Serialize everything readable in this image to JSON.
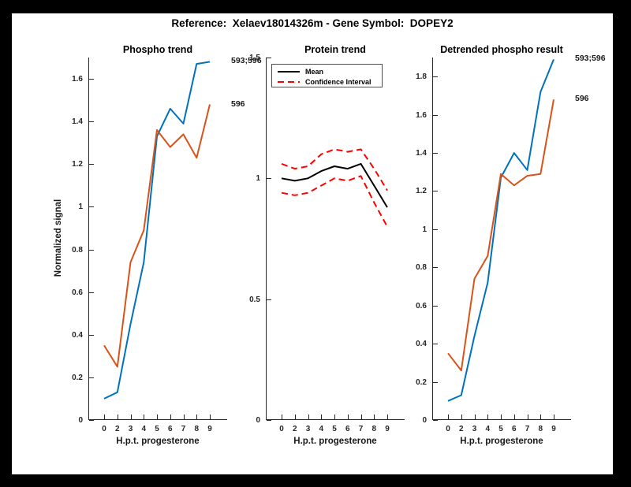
{
  "figure": {
    "title": "Reference:  Xelaev18014326m - Gene Symbol:  DOPEY2",
    "background_color": "#000000",
    "canvas_color": "#ffffff"
  },
  "colors": {
    "blue": "#0072BD",
    "orange": "#D95319",
    "red": "#FF0000",
    "black": "#000000",
    "axis": "#262626"
  },
  "chart_data": [
    {
      "type": "line",
      "title": "Phospho trend",
      "xlabel": "H.p.t. progesterone",
      "ylabel": "Normalized signal",
      "x_ticklabels": [
        "0",
        "2",
        "3",
        "4",
        "5",
        "6",
        "7",
        "8",
        "9"
      ],
      "ylim": [
        0,
        1.7
      ],
      "yticks": [
        0,
        0.2,
        0.4,
        0.6,
        0.8,
        1,
        1.2,
        1.4,
        1.6
      ],
      "ytick_labels": [
        "0",
        "0.2",
        "0.4",
        "0.6",
        "0.8",
        "1",
        "1.2",
        "1.4",
        "1.6"
      ],
      "grid": false,
      "series": [
        {
          "name": "593;596",
          "color": "blue",
          "style": "solid",
          "values": [
            0.1,
            0.13,
            0.45,
            0.74,
            1.33,
            1.46,
            1.39,
            1.67,
            1.68
          ],
          "end_label": "593;596"
        },
        {
          "name": "596",
          "color": "orange",
          "style": "solid",
          "values": [
            0.35,
            0.25,
            0.74,
            0.89,
            1.36,
            1.28,
            1.34,
            1.23,
            1.48
          ],
          "end_label": "596"
        }
      ]
    },
    {
      "type": "line",
      "title": "Protein trend",
      "xlabel": "H.p.t. progesterone",
      "ylabel": "",
      "x_ticklabels": [
        "0",
        "2",
        "3",
        "4",
        "5",
        "6",
        "7",
        "8",
        "9"
      ],
      "ylim": [
        0,
        1.5
      ],
      "yticks": [
        0,
        0.5,
        1,
        1.5
      ],
      "ytick_labels": [
        "0",
        "0.5",
        "1",
        "1.5"
      ],
      "grid": false,
      "legend": {
        "position": "northwest",
        "items": [
          {
            "label": "Mean",
            "color": "black",
            "style": "solid"
          },
          {
            "label": "Confidence Interval",
            "color": "red",
            "style": "dashed"
          }
        ]
      },
      "series": [
        {
          "name": "Mean",
          "color": "black",
          "style": "solid",
          "values": [
            1.0,
            0.99,
            1.0,
            1.03,
            1.05,
            1.04,
            1.06,
            0.97,
            0.88
          ],
          "end_label": null
        },
        {
          "name": "Confidence Interval upper",
          "color": "red",
          "style": "dashed",
          "values": [
            1.06,
            1.04,
            1.05,
            1.1,
            1.12,
            1.11,
            1.12,
            1.04,
            0.95
          ],
          "end_label": null
        },
        {
          "name": "Confidence Interval lower",
          "color": "red",
          "style": "dashed",
          "values": [
            0.94,
            0.93,
            0.94,
            0.97,
            1.0,
            0.99,
            1.01,
            0.9,
            0.8
          ],
          "end_label": null
        }
      ]
    },
    {
      "type": "line",
      "title": "Detrended phospho result",
      "xlabel": "H.p.t. progesterone",
      "ylabel": "",
      "x_ticklabels": [
        "0",
        "2",
        "3",
        "4",
        "5",
        "6",
        "7",
        "8",
        "9"
      ],
      "ylim": [
        0,
        1.9
      ],
      "yticks": [
        0,
        0.2,
        0.4,
        0.6,
        0.8,
        1,
        1.2,
        1.4,
        1.6,
        1.8
      ],
      "ytick_labels": [
        "0",
        "0.2",
        "0.4",
        "0.6",
        "0.8",
        "1",
        "1.2",
        "1.4",
        "1.6",
        "1.8"
      ],
      "grid": false,
      "series": [
        {
          "name": "593;596",
          "color": "blue",
          "style": "solid",
          "values": [
            0.1,
            0.13,
            0.44,
            0.72,
            1.27,
            1.4,
            1.31,
            1.72,
            1.89
          ],
          "end_label": "593;596"
        },
        {
          "name": "596",
          "color": "orange",
          "style": "solid",
          "values": [
            0.35,
            0.26,
            0.74,
            0.86,
            1.29,
            1.23,
            1.28,
            1.29,
            1.68
          ],
          "end_label": "596"
        }
      ]
    }
  ]
}
